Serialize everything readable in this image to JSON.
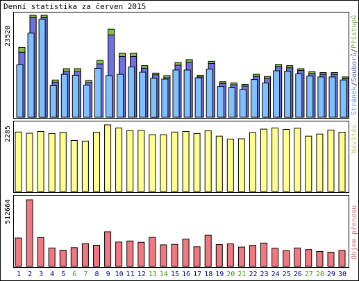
{
  "title": "Denní statistika za červen 2015",
  "colors": {
    "hits": "#88c040",
    "files": "#7070e0",
    "pages": "#80c0ff",
    "visits": "#ffff90",
    "transfer": "#f07880",
    "weekend_label": "#3a9a00",
    "weekday_label": "#000080",
    "background": "#ffffff",
    "panel_bg": "#ffffff",
    "grid_line": "#000000"
  },
  "chart_data": [
    {
      "type": "bar",
      "panel": "main",
      "categories": [
        "1",
        "2",
        "3",
        "4",
        "5",
        "6",
        "7",
        "8",
        "9",
        "10",
        "11",
        "12",
        "13",
        "14",
        "15",
        "16",
        "17",
        "18",
        "19",
        "20",
        "21",
        "22",
        "23",
        "24",
        "25",
        "26",
        "27",
        "28",
        "29",
        "30"
      ],
      "weekend_days": [
        "6",
        "7",
        "13",
        "14",
        "20",
        "21",
        "27",
        "28"
      ],
      "ymax_label": "23520",
      "ylim": [
        0,
        23520
      ],
      "legend_labels": {
        "pages": "Stránek",
        "files": "Souborů",
        "hits": "Přístupů",
        "sep": "/"
      },
      "series": [
        {
          "name": "Přístupů",
          "values": [
            16100,
            23520,
            23520,
            8600,
            11200,
            11200,
            8500,
            13100,
            20300,
            14800,
            14800,
            11900,
            10200,
            9600,
            12600,
            13300,
            9700,
            12900,
            8200,
            7900,
            7600,
            9900,
            9400,
            12200,
            11900,
            11200,
            10500,
            10300,
            10300,
            9300
          ]
        },
        {
          "name": "Souborů",
          "values": [
            15000,
            23000,
            23000,
            8100,
            10500,
            10500,
            8000,
            12300,
            19000,
            14000,
            14000,
            11300,
            9800,
            9100,
            12000,
            12700,
            9300,
            12400,
            7800,
            7500,
            7200,
            9400,
            9000,
            11700,
            11400,
            10800,
            10100,
            9900,
            9900,
            8900
          ]
        },
        {
          "name": "Stránek",
          "values": [
            12100,
            19400,
            22600,
            7300,
            9900,
            9700,
            7400,
            11300,
            9600,
            9900,
            11600,
            10400,
            9000,
            8800,
            10900,
            10900,
            9100,
            11100,
            7100,
            6800,
            6400,
            8700,
            7900,
            10700,
            10600,
            10000,
            9500,
            9300,
            9300,
            8600
          ]
        }
      ]
    },
    {
      "type": "bar",
      "panel": "visits",
      "categories": [
        "1",
        "2",
        "3",
        "4",
        "5",
        "6",
        "7",
        "8",
        "9",
        "10",
        "11",
        "12",
        "13",
        "14",
        "15",
        "16",
        "17",
        "18",
        "19",
        "20",
        "21",
        "22",
        "23",
        "24",
        "25",
        "26",
        "27",
        "28",
        "29",
        "30"
      ],
      "ymax_label": "2285",
      "ylim": [
        0,
        2285
      ],
      "side_label": "Návštěv",
      "series": [
        {
          "name": "Návštěv",
          "values": [
            2040,
            2000,
            2060,
            1990,
            2030,
            1750,
            1730,
            2030,
            2285,
            2180,
            2090,
            2100,
            1950,
            1950,
            2040,
            2060,
            1990,
            2080,
            1900,
            1800,
            1810,
            2020,
            2140,
            2180,
            2130,
            2170,
            1900,
            1970,
            2110,
            2030
          ]
        }
      ]
    },
    {
      "type": "bar",
      "panel": "transfer",
      "categories": [
        "1",
        "2",
        "3",
        "4",
        "5",
        "6",
        "7",
        "8",
        "9",
        "10",
        "11",
        "12",
        "13",
        "14",
        "15",
        "16",
        "17",
        "18",
        "19",
        "20",
        "21",
        "22",
        "23",
        "24",
        "25",
        "26",
        "27",
        "28",
        "29",
        "30"
      ],
      "ymax_label": "512664",
      "ylim": [
        0,
        512664
      ],
      "side_label": "Objem přenosu",
      "series": [
        {
          "name": "Objem přenosu",
          "values": [
            219000,
            512664,
            222000,
            142000,
            125000,
            145000,
            176000,
            163000,
            267000,
            188000,
            196000,
            186000,
            224000,
            166000,
            170000,
            211000,
            151000,
            240000,
            168000,
            174000,
            149000,
            162000,
            180000,
            140000,
            122000,
            142000,
            130000,
            115000,
            110000,
            124000
          ]
        }
      ]
    }
  ]
}
